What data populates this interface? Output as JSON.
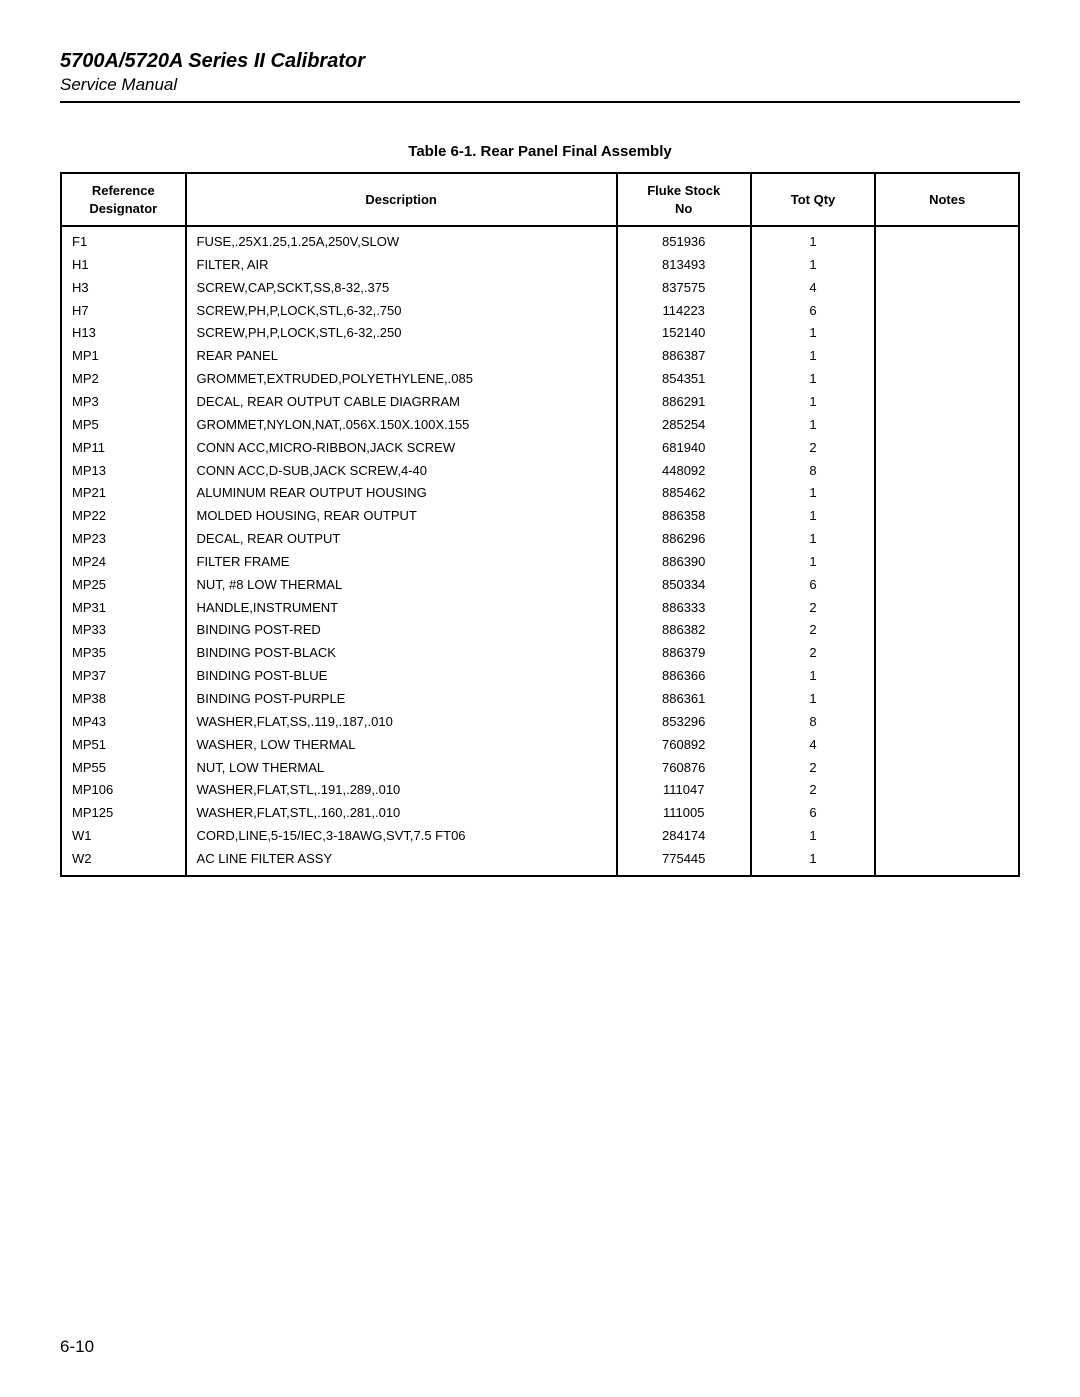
{
  "header": {
    "title": "5700A/5720A Series II Calibrator",
    "subtitle": "Service Manual"
  },
  "table": {
    "caption": "Table 6-1. Rear Panel Final Assembly",
    "columns": {
      "ref": "Reference\nDesignator",
      "desc": "Description",
      "stock": "Fluke Stock\nNo",
      "qty": "Tot Qty",
      "notes": "Notes"
    },
    "rows": [
      {
        "ref": "F1",
        "desc": "FUSE,.25X1.25,1.25A,250V,SLOW",
        "stock": "851936",
        "qty": "1",
        "notes": ""
      },
      {
        "ref": "H1",
        "desc": "FILTER, AIR",
        "stock": "813493",
        "qty": "1",
        "notes": ""
      },
      {
        "ref": "H3",
        "desc": "SCREW,CAP,SCKT,SS,8-32,.375",
        "stock": "837575",
        "qty": "4",
        "notes": ""
      },
      {
        "ref": "H7",
        "desc": "SCREW,PH,P,LOCK,STL,6-32,.750",
        "stock": "114223",
        "qty": "6",
        "notes": ""
      },
      {
        "ref": "H13",
        "desc": "SCREW,PH,P,LOCK,STL,6-32,.250",
        "stock": "152140",
        "qty": "1",
        "notes": ""
      },
      {
        "ref": "MP1",
        "desc": "REAR PANEL",
        "stock": "886387",
        "qty": "1",
        "notes": ""
      },
      {
        "ref": "MP2",
        "desc": "GROMMET,EXTRUDED,POLYETHYLENE,.085",
        "stock": "854351",
        "qty": "1",
        "notes": ""
      },
      {
        "ref": "MP3",
        "desc": "DECAL, REAR OUTPUT CABLE DIAGRRAM",
        "stock": "886291",
        "qty": "1",
        "notes": ""
      },
      {
        "ref": "MP5",
        "desc": "GROMMET,NYLON,NAT,.056X.150X.100X.155",
        "stock": "285254",
        "qty": "1",
        "notes": ""
      },
      {
        "ref": "MP11",
        "desc": "CONN ACC,MICRO-RIBBON,JACK SCREW",
        "stock": "681940",
        "qty": "2",
        "notes": ""
      },
      {
        "ref": "MP13",
        "desc": "CONN ACC,D-SUB,JACK SCREW,4-40",
        "stock": "448092",
        "qty": "8",
        "notes": ""
      },
      {
        "ref": "MP21",
        "desc": "ALUMINUM REAR OUTPUT HOUSING",
        "stock": "885462",
        "qty": "1",
        "notes": ""
      },
      {
        "ref": "MP22",
        "desc": "MOLDED HOUSING, REAR OUTPUT",
        "stock": "886358",
        "qty": "1",
        "notes": ""
      },
      {
        "ref": "MP23",
        "desc": "DECAL, REAR OUTPUT",
        "stock": "886296",
        "qty": "1",
        "notes": ""
      },
      {
        "ref": "MP24",
        "desc": "FILTER FRAME",
        "stock": "886390",
        "qty": "1",
        "notes": ""
      },
      {
        "ref": "MP25",
        "desc": "NUT, #8 LOW THERMAL",
        "stock": "850334",
        "qty": "6",
        "notes": ""
      },
      {
        "ref": "MP31",
        "desc": "HANDLE,INSTRUMENT",
        "stock": "886333",
        "qty": "2",
        "notes": ""
      },
      {
        "ref": "MP33",
        "desc": "BINDING POST-RED",
        "stock": "886382",
        "qty": "2",
        "notes": ""
      },
      {
        "ref": "MP35",
        "desc": "BINDING POST-BLACK",
        "stock": "886379",
        "qty": "2",
        "notes": ""
      },
      {
        "ref": "MP37",
        "desc": "BINDING POST-BLUE",
        "stock": "886366",
        "qty": "1",
        "notes": ""
      },
      {
        "ref": "MP38",
        "desc": "BINDING POST-PURPLE",
        "stock": "886361",
        "qty": "1",
        "notes": ""
      },
      {
        "ref": "MP43",
        "desc": "WASHER,FLAT,SS,.119,.187,.010",
        "stock": "853296",
        "qty": "8",
        "notes": ""
      },
      {
        "ref": "MP51",
        "desc": "WASHER, LOW THERMAL",
        "stock": "760892",
        "qty": "4",
        "notes": ""
      },
      {
        "ref": "MP55",
        "desc": "NUT, LOW THERMAL",
        "stock": "760876",
        "qty": "2",
        "notes": ""
      },
      {
        "ref": "MP106",
        "desc": "WASHER,FLAT,STL,.191,.289,.010",
        "stock": "111047",
        "qty": "2",
        "notes": ""
      },
      {
        "ref": "MP125",
        "desc": "WASHER,FLAT,STL,.160,.281,.010",
        "stock": "111005",
        "qty": "6",
        "notes": ""
      },
      {
        "ref": "W1",
        "desc": "CORD,LINE,5-15/IEC,3-18AWG,SVT,7.5 FT06",
        "stock": "284174",
        "qty": "1",
        "notes": ""
      },
      {
        "ref": "W2",
        "desc": "AC LINE FILTER ASSY",
        "stock": "775445",
        "qty": "1",
        "notes": ""
      }
    ]
  },
  "page_number": "6-10"
}
